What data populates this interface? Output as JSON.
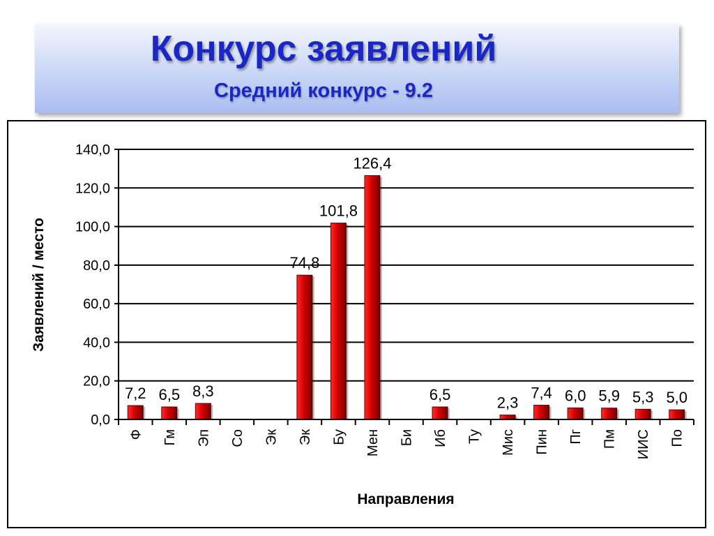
{
  "header": {
    "title": "Конкурс заявлений",
    "subtitle": "Средний конкурс -  9.2"
  },
  "colors": {
    "bar": "#cc0000",
    "bar_dark": "#6e0000",
    "title": "#1a26c6"
  },
  "chart_data": {
    "type": "bar",
    "title": "",
    "xlabel": "Направления",
    "ylabel": "Заявлений / место",
    "ylim": [
      0,
      140
    ],
    "yticks": [
      "0,0",
      "20,0",
      "40,0",
      "60,0",
      "80,0",
      "100,0",
      "120,0",
      "140,0"
    ],
    "grid": true,
    "categories": [
      "Ф",
      "Гм",
      "Эп",
      "Со",
      "Эк",
      "Эк",
      "Бу",
      "Мен",
      "Би",
      "Иб",
      "Ту",
      "Мис",
      "Пин",
      "Пг",
      "Пм",
      "ИИС",
      "По"
    ],
    "values": [
      7.2,
      6.5,
      8.3,
      null,
      null,
      74.8,
      101.8,
      126.4,
      null,
      6.5,
      null,
      2.3,
      7.4,
      6.0,
      5.9,
      5.3,
      5.0
    ],
    "data_labels": [
      "7,2",
      "6,5",
      "8,3",
      "",
      "",
      "74,8",
      "101,8",
      "126,4",
      "",
      "6,5",
      "",
      "2,3",
      "7,4",
      "6,0",
      "5,9",
      "5,3",
      "5,0"
    ]
  }
}
